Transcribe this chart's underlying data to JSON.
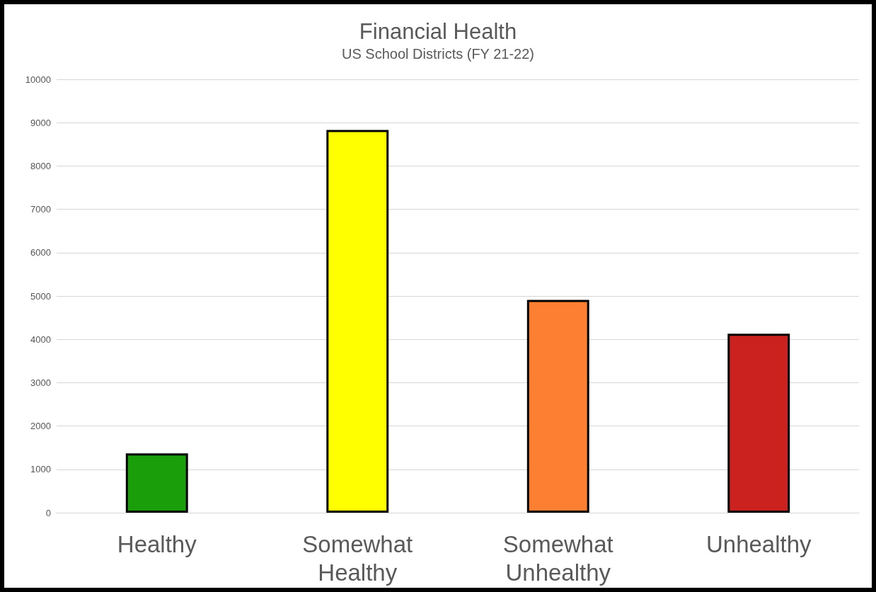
{
  "chart_data": {
    "type": "bar",
    "title": "Financial Health",
    "subtitle": "US School Districts (FY 21-22)",
    "categories": [
      "Healthy",
      "Somewhat Healthy",
      "Somewhat Unhealthy",
      "Unhealthy"
    ],
    "values": [
      1370,
      8830,
      4910,
      4130
    ],
    "colors": [
      "#1a9e0a",
      "#ffff00",
      "#fd7f32",
      "#cb2220"
    ],
    "ylim": [
      0,
      10000
    ],
    "yticks": [
      0,
      1000,
      2000,
      3000,
      4000,
      5000,
      6000,
      7000,
      8000,
      9000,
      10000
    ],
    "grid": "y"
  }
}
